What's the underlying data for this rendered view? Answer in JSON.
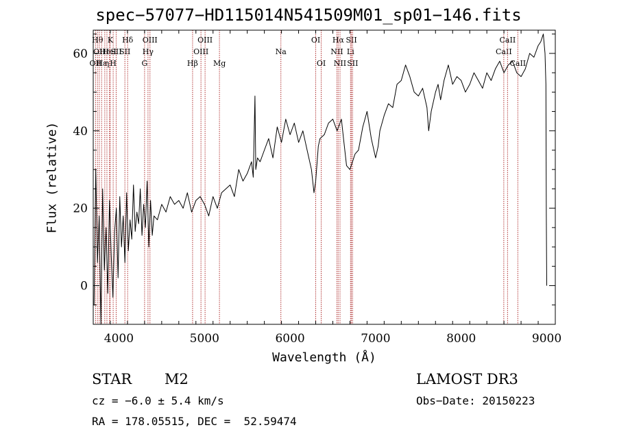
{
  "chart_data": {
    "type": "line",
    "title": "spec−57077−HD115014N541509M01_sp01−146.fits",
    "xlabel": "Wavelength (Å)",
    "ylabel": "Flux (relative)",
    "xlim": [
      3700,
      9100
    ],
    "ylim": [
      -10,
      66
    ],
    "xticks": [
      4000,
      5000,
      6000,
      7000,
      8000,
      9000
    ],
    "yticks": [
      0,
      20,
      40,
      60
    ],
    "xtick_labels": [
      "4000",
      "5000",
      "6000",
      "7000",
      "8000",
      "9000"
    ],
    "ytick_labels": [
      "0",
      "20",
      "40",
      "60"
    ],
    "series": [
      {
        "name": "flux",
        "x": [
          3710,
          3730,
          3750,
          3770,
          3790,
          3810,
          3830,
          3850,
          3870,
          3890,
          3910,
          3930,
          3950,
          3970,
          3990,
          4010,
          4030,
          4050,
          4070,
          4090,
          4110,
          4130,
          4150,
          4170,
          4190,
          4210,
          4230,
          4250,
          4270,
          4290,
          4310,
          4330,
          4350,
          4370,
          4390,
          4410,
          4450,
          4500,
          4550,
          4600,
          4650,
          4700,
          4750,
          4800,
          4850,
          4900,
          4950,
          5000,
          5050,
          5100,
          5150,
          5200,
          5250,
          5300,
          5350,
          5400,
          5450,
          5500,
          5550,
          5570,
          5590,
          5600,
          5620,
          5650,
          5700,
          5750,
          5800,
          5850,
          5900,
          5950,
          6000,
          6050,
          6100,
          6150,
          6200,
          6250,
          6280,
          6300,
          6330,
          6350,
          6400,
          6450,
          6500,
          6550,
          6600,
          6630,
          6660,
          6700,
          6730,
          6760,
          6800,
          6850,
          6900,
          6950,
          7000,
          7030,
          7050,
          7100,
          7150,
          7200,
          7250,
          7300,
          7350,
          7400,
          7450,
          7500,
          7550,
          7600,
          7620,
          7650,
          7700,
          7730,
          7760,
          7800,
          7850,
          7900,
          7950,
          8000,
          8050,
          8100,
          8150,
          8200,
          8250,
          8300,
          8350,
          8400,
          8450,
          8500,
          8550,
          8600,
          8650,
          8700,
          8750,
          8800,
          8850,
          8900,
          8930,
          8960,
          8980,
          8990,
          8995,
          9000
        ],
        "y": [
          -5,
          30,
          6,
          18,
          -10,
          25,
          4,
          15,
          -2,
          22,
          8,
          -3,
          14,
          20,
          2,
          23,
          10,
          18,
          6,
          24,
          9,
          17,
          12,
          26,
          14,
          19,
          16,
          25,
          13,
          21,
          15,
          27,
          10,
          22,
          13,
          18,
          17,
          21,
          19,
          23,
          21,
          22,
          20,
          24,
          19,
          22,
          23,
          21,
          18,
          23,
          20,
          24,
          25,
          26,
          23,
          30,
          27,
          29,
          32,
          28,
          49,
          30,
          33,
          32,
          35,
          38,
          33,
          41,
          37,
          43,
          39,
          42,
          37,
          40,
          35,
          30,
          24,
          27,
          36,
          38,
          39,
          42,
          43,
          40,
          43,
          37,
          31,
          30,
          32,
          34,
          35,
          41,
          45,
          38,
          33,
          36,
          40,
          44,
          47,
          46,
          52,
          53,
          57,
          54,
          50,
          49,
          51,
          46,
          40,
          45,
          50,
          52,
          48,
          53,
          57,
          52,
          54,
          53,
          50,
          52,
          55,
          53,
          51,
          55,
          53,
          56,
          58,
          55,
          57,
          58,
          55,
          54,
          56,
          60,
          59,
          62,
          63,
          65,
          60,
          52,
          18,
          0
        ]
      }
    ],
    "lines": [
      {
        "wl": 3727,
        "row": 2,
        "label": "OII"
      },
      {
        "wl": 3750,
        "row": 0,
        "label": "Hθ"
      },
      {
        "wl": 3771,
        "row": 1,
        "label": "OII"
      },
      {
        "wl": 3798,
        "row": 2,
        "label": "Hε"
      },
      {
        "wl": 3835,
        "row": 1,
        "label": "Hε"
      },
      {
        "wl": 3860,
        "row": 2,
        "label": "η"
      },
      {
        "wl": 3889,
        "row": 1,
        "label": "HeI"
      },
      {
        "wl": 3900,
        "row": 0,
        "label": "K"
      },
      {
        "wl": 3933,
        "row": 2,
        "label": "H"
      },
      {
        "wl": 3968,
        "row": 1,
        "label": "SII"
      },
      {
        "wl": 4070,
        "row": 1,
        "label": "SII"
      },
      {
        "wl": 4102,
        "row": 0,
        "label": "Hδ"
      },
      {
        "wl": 4300,
        "row": 2,
        "label": "G"
      },
      {
        "wl": 4340,
        "row": 1,
        "label": "Hγ"
      },
      {
        "wl": 4363,
        "row": 0,
        "label": "OIII"
      },
      {
        "wl": 4861,
        "row": 2,
        "label": "Hβ"
      },
      {
        "wl": 4959,
        "row": 1,
        "label": "OIII"
      },
      {
        "wl": 5007,
        "row": 0,
        "label": "OIII"
      },
      {
        "wl": 5175,
        "row": 2,
        "label": "Mg"
      },
      {
        "wl": 5893,
        "row": 1,
        "label": "Na"
      },
      {
        "wl": 6300,
        "row": 0,
        "label": "OI"
      },
      {
        "wl": 6364,
        "row": 2,
        "label": "OI"
      },
      {
        "wl": 6548,
        "row": 1,
        "label": "NII"
      },
      {
        "wl": 6563,
        "row": 0,
        "label": "Hα"
      },
      {
        "wl": 6584,
        "row": 2,
        "label": "NII"
      },
      {
        "wl": 6707,
        "row": 1,
        "label": "Li"
      },
      {
        "wl": 6717,
        "row": 0,
        "label": "SII"
      },
      {
        "wl": 6731,
        "row": 2,
        "label": "SII"
      },
      {
        "wl": 8498,
        "row": 1,
        "label": "CaII"
      },
      {
        "wl": 8542,
        "row": 0,
        "label": "CaII"
      },
      {
        "wl": 8662,
        "row": 2,
        "label": "CaII"
      }
    ]
  },
  "info": {
    "object_type": "STAR",
    "subclass": "M2",
    "cz": "cz = −6.0 ± 5.4 km/s",
    "radec": "RA = 178.05515, DEC =  52.59474",
    "survey": "LAMOST DR3",
    "obs_date": "Obs−Date: 20150223"
  },
  "colors": {
    "axes": "#000000",
    "spectrum": "#000000",
    "line_marker": "#b03030"
  }
}
